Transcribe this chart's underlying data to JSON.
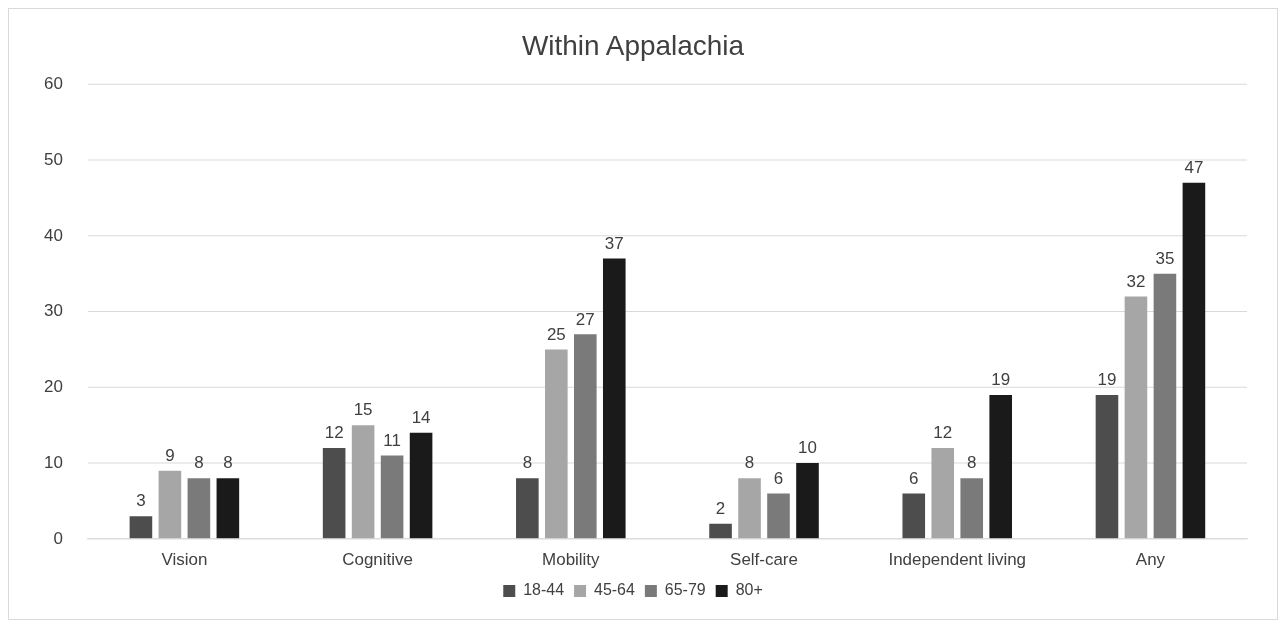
{
  "chart_data": {
    "type": "bar",
    "title": "Within Appalachia",
    "categories": [
      "Vision",
      "Cognitive",
      "Mobility",
      "Self-care",
      "Independent living",
      "Any"
    ],
    "series": [
      {
        "name": "18-44",
        "color": "#4d4d4d",
        "values": [
          3,
          12,
          8,
          2,
          6,
          19
        ]
      },
      {
        "name": "45-64",
        "color": "#a6a6a6",
        "values": [
          9,
          15,
          25,
          8,
          12,
          32
        ]
      },
      {
        "name": "65-79",
        "color": "#7a7a7a",
        "values": [
          8,
          11,
          27,
          6,
          8,
          35
        ]
      },
      {
        "name": "80+",
        "color": "#1a1a1a",
        "values": [
          8,
          14,
          37,
          10,
          19,
          47
        ]
      }
    ],
    "ylim": [
      0,
      60
    ],
    "yticks": [
      0,
      10,
      20,
      30,
      40,
      50,
      60
    ],
    "grid": "y",
    "legend": "bottom",
    "data_labels": true
  }
}
